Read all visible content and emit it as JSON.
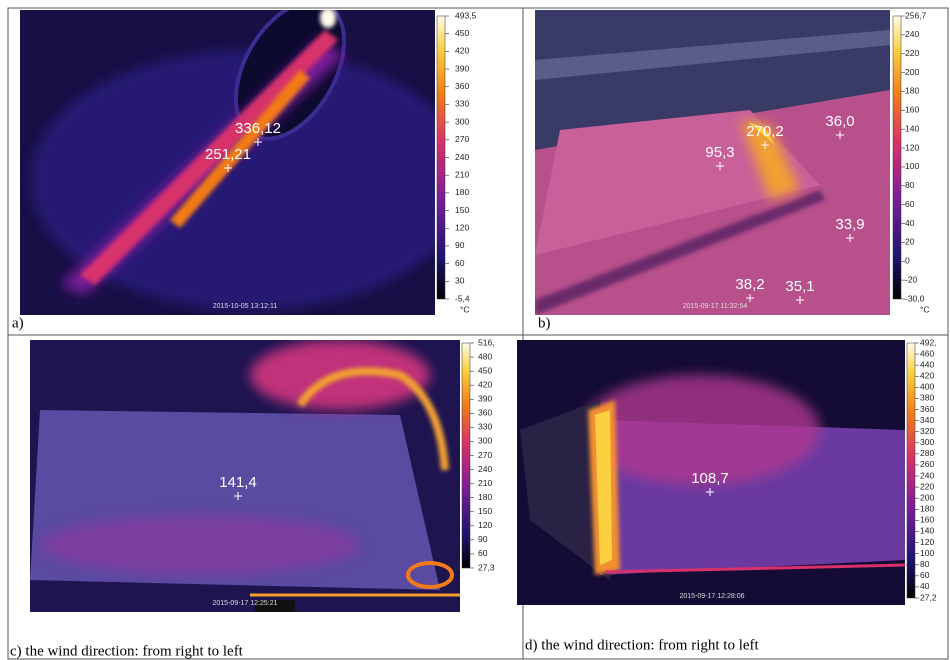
{
  "panels": [
    {
      "caption": "a)",
      "timestamp": "2015-10-05 13:12:11",
      "unit": "°C",
      "scale": [
        "493,5",
        "450",
        "420",
        "390",
        "360",
        "330",
        "300",
        "270",
        "240",
        "210",
        "180",
        "150",
        "120",
        "90",
        "60",
        "30",
        "-5,4"
      ],
      "points": [
        "336,12",
        "251,21"
      ]
    },
    {
      "caption": "b)",
      "timestamp": "2015-09-17 11:32:54",
      "unit": "°C",
      "scale": [
        "256,7",
        "240",
        "220",
        "200",
        "180",
        "160",
        "140",
        "120",
        "100",
        "80",
        "60",
        "40",
        "20",
        "0",
        "-20",
        "-30,0"
      ],
      "points": [
        "270,2",
        "95,3",
        "36,0",
        "33,9",
        "38,2",
        "35,1"
      ]
    },
    {
      "caption": "c)  the wind direction: from right to left",
      "timestamp": "2015-09-17 12:25:21",
      "scale": [
        "516,",
        "480",
        "450",
        "420",
        "390",
        "360",
        "330",
        "300",
        "270",
        "240",
        "210",
        "180",
        "150",
        "120",
        "90",
        "60",
        "27,3"
      ],
      "points": [
        "141,4"
      ]
    },
    {
      "caption": "d) the wind direction: from right to left",
      "timestamp": "2015-09-17 12:28:06",
      "scale": [
        "492,",
        "460",
        "440",
        "420",
        "400",
        "380",
        "360",
        "340",
        "320",
        "300",
        "280",
        "260",
        "240",
        "220",
        "200",
        "180",
        "160",
        "140",
        "120",
        "100",
        "80",
        "60",
        "40",
        "27,2"
      ],
      "points": [
        "108,7"
      ]
    }
  ]
}
